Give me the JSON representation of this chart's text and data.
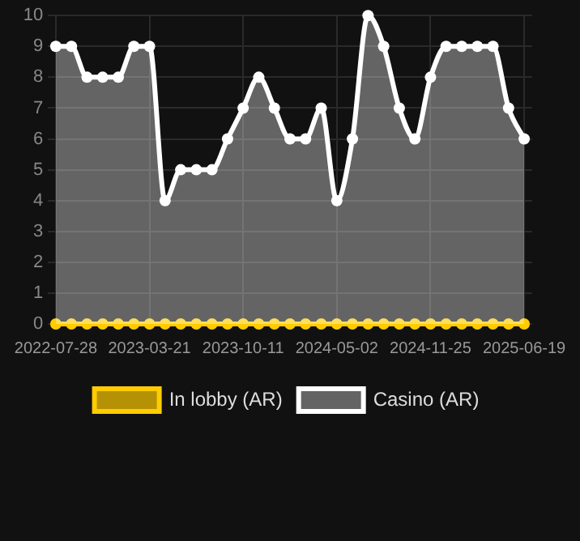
{
  "chart_data": {
    "type": "line",
    "categories": [
      "2022-07-28",
      null,
      null,
      null,
      null,
      null,
      "2023-03-21",
      null,
      null,
      null,
      null,
      null,
      "2023-10-11",
      null,
      null,
      null,
      null,
      null,
      "2024-05-02",
      null,
      null,
      null,
      null,
      null,
      "2024-11-25",
      null,
      null,
      null,
      null,
      null,
      "2025-06-19"
    ],
    "series": [
      {
        "name": "In lobby (AR)",
        "type": "line",
        "color": "#ffcc00",
        "values": [
          0,
          0,
          0,
          0,
          0,
          0,
          0,
          0,
          0,
          0,
          0,
          0,
          0,
          0,
          0,
          0,
          0,
          0,
          0,
          0,
          0,
          0,
          0,
          0,
          0,
          0,
          0,
          0,
          0,
          0,
          0
        ]
      },
      {
        "name": "Casino (AR)",
        "type": "area",
        "color": "#ffffff",
        "values": [
          9,
          9,
          8,
          8,
          8,
          9,
          9,
          4,
          5,
          5,
          5,
          6,
          7,
          8,
          7,
          6,
          6,
          7,
          4,
          6,
          10,
          9,
          7,
          6,
          8,
          9,
          9,
          9,
          9,
          7,
          6
        ]
      }
    ],
    "ylim": [
      0,
      10
    ],
    "yticks": [
      0,
      1,
      2,
      3,
      4,
      5,
      6,
      7,
      8,
      9,
      10
    ],
    "grid": true,
    "legend": "bottom",
    "marker": "circle",
    "line_style": "solid"
  }
}
